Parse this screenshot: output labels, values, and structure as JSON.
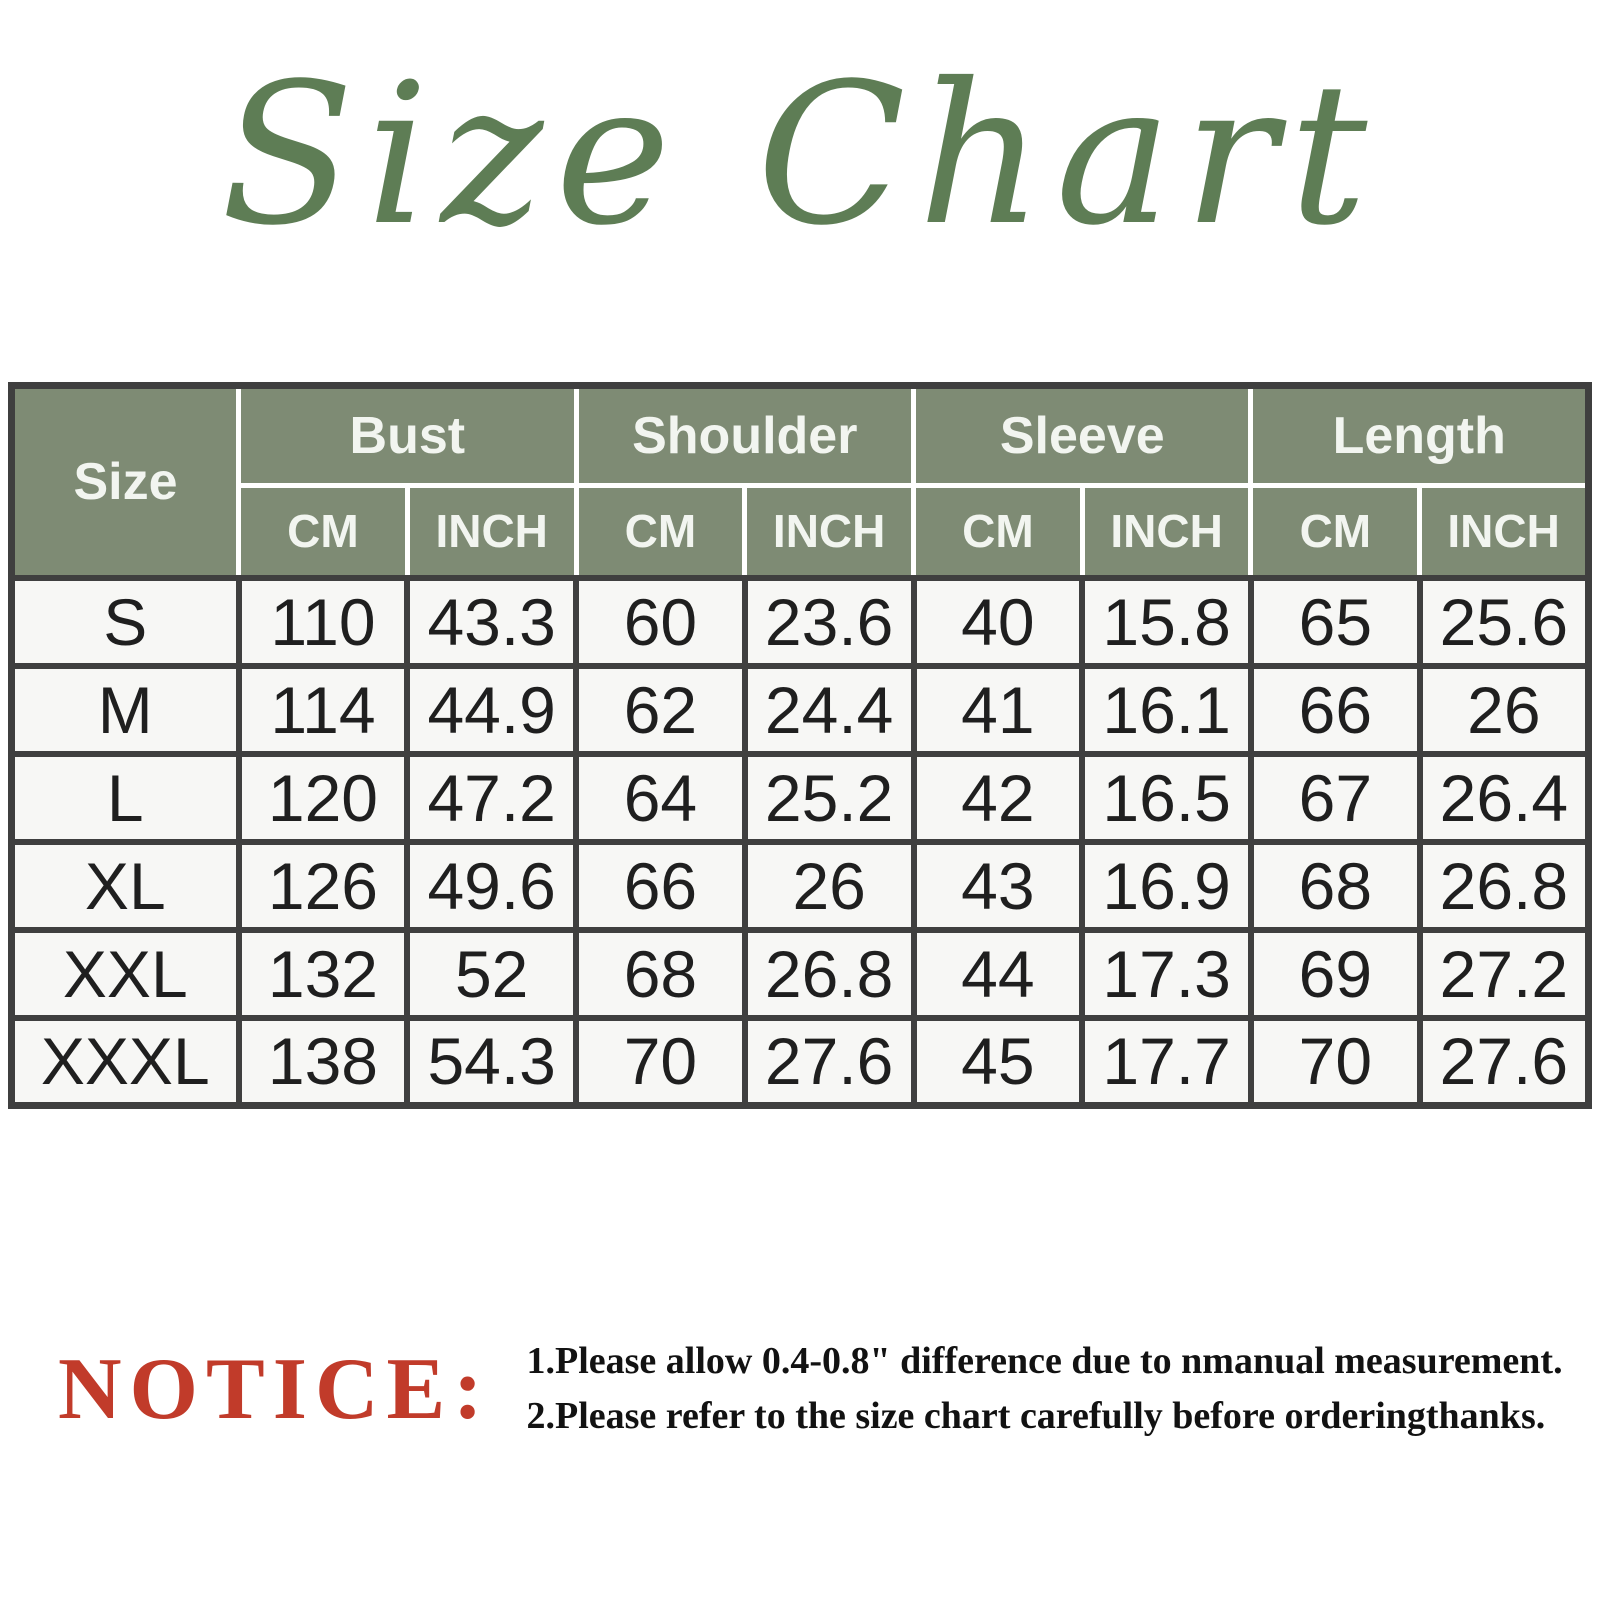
{
  "title": "Size Chart",
  "colors": {
    "title_green": "#5e7d55",
    "header_green": "#7e8b74",
    "notice_red": "#c13b2a",
    "body_cell_bg": "#f7f7f5",
    "grid_dark": "#3f3f3f"
  },
  "table": {
    "corner_label": "Size",
    "measure_groups": [
      {
        "label": "Bust"
      },
      {
        "label": "Shoulder"
      },
      {
        "label": "Sleeve"
      },
      {
        "label": "Length"
      }
    ],
    "unit_labels": [
      "CM",
      "INCH"
    ],
    "rows": [
      {
        "size": "S",
        "values": [
          "110",
          "43.3",
          "60",
          "23.6",
          "40",
          "15.8",
          "65",
          "25.6"
        ]
      },
      {
        "size": "M",
        "values": [
          "114",
          "44.9",
          "62",
          "24.4",
          "41",
          "16.1",
          "66",
          "26"
        ]
      },
      {
        "size": "L",
        "values": [
          "120",
          "47.2",
          "64",
          "25.2",
          "42",
          "16.5",
          "67",
          "26.4"
        ]
      },
      {
        "size": "XL",
        "values": [
          "126",
          "49.6",
          "66",
          "26",
          "43",
          "16.9",
          "68",
          "26.8"
        ]
      },
      {
        "size": "XXL",
        "values": [
          "132",
          "52",
          "68",
          "26.8",
          "44",
          "17.3",
          "69",
          "27.2"
        ]
      },
      {
        "size": "XXXL",
        "values": [
          "138",
          "54.3",
          "70",
          "27.6",
          "45",
          "17.7",
          "70",
          "27.6"
        ]
      }
    ]
  },
  "notice": {
    "label": "NOTICE:",
    "lines": [
      "1.Please allow 0.4-0.8\" difference due to nmanual measurement.",
      "2.Please refer to the size chart carefully before orderingthanks."
    ]
  },
  "chart_data": {
    "type": "table",
    "title": "Size Chart",
    "columns": [
      "Size",
      "Bust CM",
      "Bust INCH",
      "Shoulder CM",
      "Shoulder INCH",
      "Sleeve CM",
      "Sleeve INCH",
      "Length CM",
      "Length INCH"
    ],
    "rows": [
      [
        "S",
        110,
        43.3,
        60,
        23.6,
        40,
        15.8,
        65,
        25.6
      ],
      [
        "M",
        114,
        44.9,
        62,
        24.4,
        41,
        16.1,
        66,
        26
      ],
      [
        "L",
        120,
        47.2,
        64,
        25.2,
        42,
        16.5,
        67,
        26.4
      ],
      [
        "XL",
        126,
        49.6,
        66,
        26,
        43,
        16.9,
        68,
        26.8
      ],
      [
        "XXL",
        132,
        52,
        68,
        26.8,
        44,
        17.3,
        69,
        27.2
      ],
      [
        "XXXL",
        138,
        54.3,
        70,
        27.6,
        45,
        17.7,
        70,
        27.6
      ]
    ],
    "notes": [
      "1.Please allow 0.4-0.8\" difference due to nmanual measurement.",
      "2.Please refer to the size chart carefully before orderingthanks."
    ]
  }
}
